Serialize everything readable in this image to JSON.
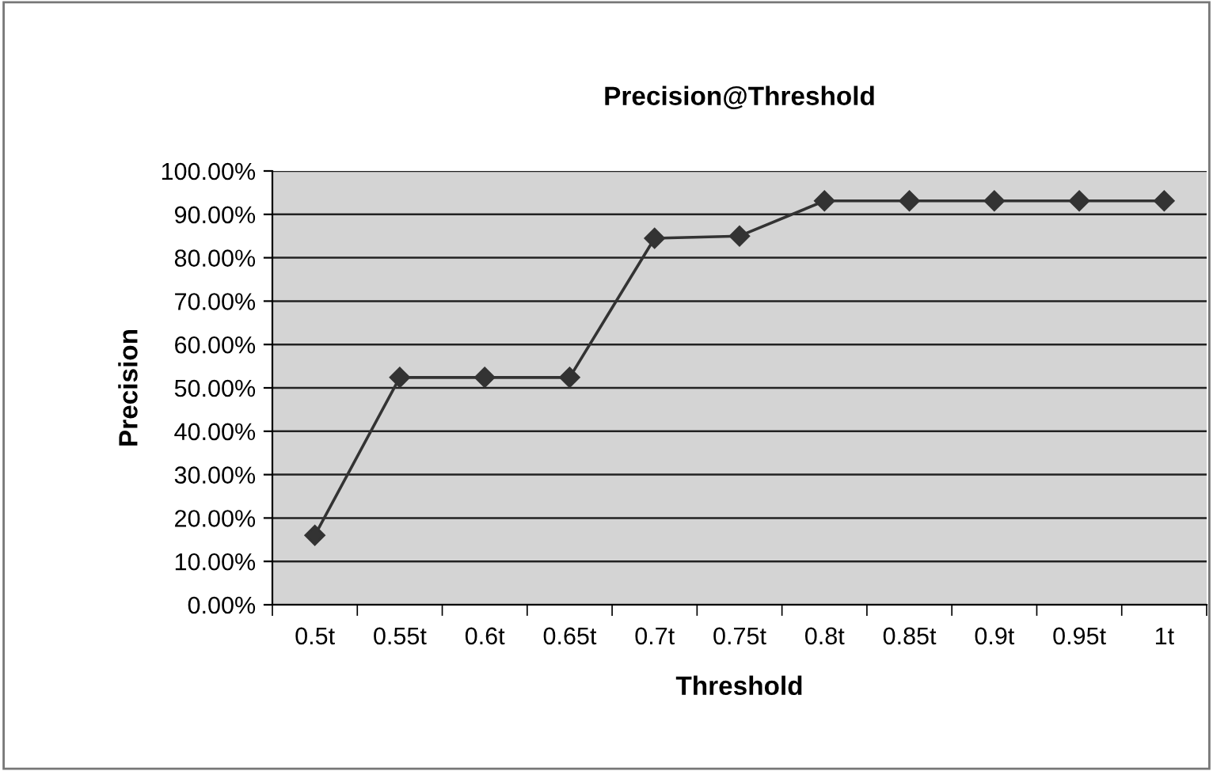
{
  "chart_data": {
    "type": "line",
    "title": "Precision@Threshold",
    "xlabel": "Threshold",
    "ylabel": "Precision",
    "categories": [
      "0.5t",
      "0.55t",
      "0.6t",
      "0.65t",
      "0.7t",
      "0.75t",
      "0.8t",
      "0.85t",
      "0.9t",
      "0.95t",
      "1t"
    ],
    "series": [
      {
        "color": "#333333",
        "values": [
          0.16,
          0.524,
          0.524,
          0.524,
          0.845,
          0.85,
          0.931,
          0.931,
          0.931,
          0.931,
          0.931
        ]
      }
    ],
    "ylim": [
      0,
      1
    ],
    "yticks": [
      {
        "value": 0,
        "label": "0.00%"
      },
      {
        "value": 0.1,
        "label": "10.00%"
      },
      {
        "value": 0.2,
        "label": "20.00%"
      },
      {
        "value": 0.3,
        "label": "30.00%"
      },
      {
        "value": 0.4,
        "label": "40.00%"
      },
      {
        "value": 0.5,
        "label": "50.00%"
      },
      {
        "value": 0.6,
        "label": "60.00%"
      },
      {
        "value": 0.7,
        "label": "70.00%"
      },
      {
        "value": 0.8,
        "label": "80.00%"
      },
      {
        "value": 0.9,
        "label": "90.00%"
      },
      {
        "value": 1,
        "label": "100.00%"
      }
    ],
    "grid": "y",
    "marker": "diamond",
    "line_style": "solid"
  }
}
